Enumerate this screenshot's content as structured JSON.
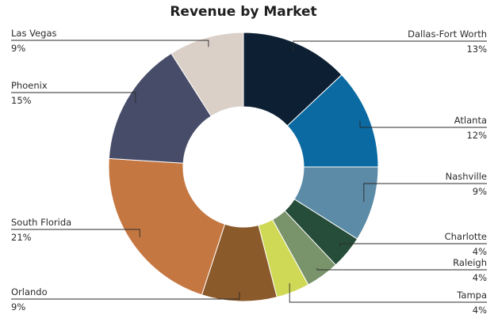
{
  "chart_data": {
    "type": "pie",
    "title": "Revenue by Market",
    "donut": true,
    "categories": [
      "Dallas-Fort Worth",
      "Atlanta",
      "Nashville",
      "Charlotte",
      "Raleigh",
      "Tampa",
      "Orlando",
      "South Florida",
      "Phoenix",
      "Las Vegas"
    ],
    "values": [
      13,
      12,
      9,
      4,
      4,
      4,
      9,
      21,
      15,
      9
    ],
    "value_labels": [
      "13%",
      "12%",
      "9%",
      "4%",
      "4%",
      "4%",
      "9%",
      "21%",
      "15%",
      "9%"
    ],
    "colors": [
      "#0d1f33",
      "#0a6aa1",
      "#5b8ba6",
      "#264d3a",
      "#79936a",
      "#cfd955",
      "#8b5a2b",
      "#c57741",
      "#474c69",
      "#dbd0c8"
    ],
    "legend": "none",
    "grid": false
  }
}
